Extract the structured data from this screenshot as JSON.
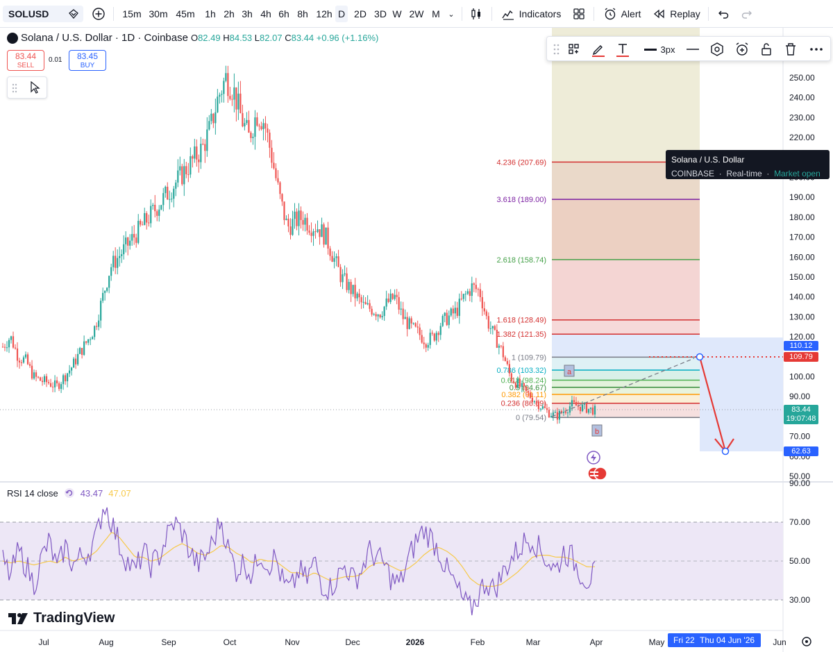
{
  "toolbar": {
    "symbol": "SOLUSD",
    "intervals": [
      "15m",
      "30m",
      "45m",
      "1h",
      "2h",
      "3h",
      "4h",
      "6h",
      "8h",
      "12h",
      "D",
      "2D",
      "3D",
      "W",
      "2W",
      "M"
    ],
    "active_interval": "D",
    "indicators_label": "Indicators",
    "alert_label": "Alert",
    "replay_label": "Replay"
  },
  "legend": {
    "title": "Solana / U.S. Dollar · 1D · Coinbase",
    "o_label": "O",
    "o": "82.49",
    "h_label": "H",
    "h": "84.53",
    "l_label": "L",
    "l": "82.07",
    "c_label": "C",
    "c": "83.44",
    "change": "+0.96 (+1.16%)"
  },
  "trade": {
    "sell_price": "83.44",
    "sell_label": "SELL",
    "spread": "0.01",
    "buy_price": "83.45",
    "buy_label": "BUY"
  },
  "drawing_toolbar": {
    "width_label": "3px"
  },
  "tooltip": {
    "title": "Solana / U.S. Dollar",
    "exchange": "COINBASE",
    "feed": "Real-time",
    "status": "Market open"
  },
  "rsi": {
    "label": "RSI 14 close",
    "value": "43.47",
    "ma_value": "47.07"
  },
  "brand": "TradingView",
  "colors": {
    "up": "#26a69a",
    "down": "#ef5350",
    "rsi": "#7e57c2",
    "rsi_ma": "#f7c948",
    "accent": "#2962ff"
  },
  "price_tags": {
    "target_high": "110.12",
    "fib_one": "109.79",
    "last": "83.44",
    "countdown": "19:07:48",
    "target_low": "62.63"
  },
  "date_tag": {
    "left": "Fri 22",
    "main": "Thu 04 Jun '26"
  },
  "chart_data": {
    "type": "candlestick",
    "price_axis": [
      "250.00",
      "240.00",
      "230.00",
      "220.00",
      "210.00",
      "200.00",
      "190.00",
      "180.00",
      "170.00",
      "160.00",
      "150.00",
      "140.00",
      "130.00",
      "120.00",
      "110.00",
      "100.00",
      "90.00",
      "80.00",
      "70.00",
      "60.00",
      "50.00"
    ],
    "time_axis": [
      "Jul",
      "Aug",
      "Sep",
      "Oct",
      "Nov",
      "Dec",
      "2026",
      "Feb",
      "Mar",
      "Apr",
      "May",
      "Jun"
    ],
    "rsi_axis": [
      "90.00",
      "70.00",
      "50.00",
      "30.00"
    ],
    "fib_levels": [
      {
        "label": "4.236 (207.69)",
        "value": 207.69,
        "color": "#d32f2f"
      },
      {
        "label": "3.618 (189.00)",
        "value": 189.0,
        "color": "#7b1fa2"
      },
      {
        "label": "2.618 (158.74)",
        "value": 158.74,
        "color": "#43a047"
      },
      {
        "label": "1.618 (128.49)",
        "value": 128.49,
        "color": "#d32f2f"
      },
      {
        "label": "1.382 (121.35)",
        "value": 121.35,
        "color": "#d32f2f"
      },
      {
        "label": "1 (109.79)",
        "value": 109.79,
        "color": "#787b86"
      },
      {
        "label": "0.786 (103.32)",
        "value": 103.32,
        "color": "#00acc1"
      },
      {
        "label": "0.618 (98.24)",
        "value": 98.24,
        "color": "#4caf50"
      },
      {
        "label": "0.5 (94.67)",
        "value": 94.67,
        "color": "#388e3c"
      },
      {
        "label": "0.382 (91.11)",
        "value": 91.11,
        "color": "#ff9800"
      },
      {
        "label": "0.236 (86.69)",
        "value": 86.69,
        "color": "#d32f2f"
      },
      {
        "label": "0 (79.54)",
        "value": 79.54,
        "color": "#787b86"
      }
    ],
    "wave_labels": [
      "a",
      "b"
    ],
    "projection": {
      "from": 109.79,
      "to": 62.63
    },
    "series_close": [
      115,
      120,
      110,
      108,
      100,
      98,
      97,
      95,
      100,
      105,
      112,
      118,
      125,
      140,
      155,
      160,
      165,
      170,
      175,
      180,
      185,
      190,
      195,
      200,
      205,
      210,
      215,
      225,
      240,
      250,
      244,
      230,
      220,
      232,
      228,
      210,
      190,
      175,
      178,
      180,
      176,
      175,
      170,
      160,
      150,
      145,
      140,
      135,
      134,
      132,
      137,
      140,
      130,
      125,
      122,
      118,
      120,
      127,
      130,
      133,
      140,
      145,
      143,
      128,
      120,
      112,
      100,
      96,
      92,
      89,
      85,
      82,
      80,
      83,
      86,
      85,
      84,
      83
    ],
    "rsi_values": [
      50,
      42,
      55,
      48,
      38,
      52,
      60,
      45,
      58,
      48,
      52,
      55,
      62,
      80,
      70,
      58,
      50,
      44,
      55,
      48,
      52,
      62,
      70,
      65,
      55,
      48,
      52,
      60,
      72,
      55,
      45,
      50,
      42,
      55,
      48,
      52,
      38,
      35,
      45,
      40,
      50,
      38,
      36,
      42,
      48,
      40,
      45,
      55,
      52,
      48,
      40,
      38,
      50,
      60,
      66,
      62,
      55,
      45,
      38,
      30,
      25,
      32,
      40,
      35,
      42,
      50,
      55,
      60,
      62,
      55,
      50,
      45,
      55,
      52,
      45,
      40,
      43.47
    ],
    "rsi_ma_values": [
      50,
      49,
      50,
      49,
      48,
      49,
      50,
      49,
      52,
      50,
      51,
      52,
      55,
      60,
      65,
      62,
      57,
      52,
      52,
      50,
      51,
      54,
      57,
      59,
      57,
      54,
      53,
      55,
      58,
      57,
      54,
      52,
      49,
      51,
      50,
      50,
      47,
      44,
      44,
      42,
      44,
      42,
      40,
      41,
      42,
      42,
      43,
      47,
      49,
      49,
      47,
      45,
      46,
      49,
      53,
      56,
      57,
      55,
      52,
      47,
      41,
      38,
      37,
      37,
      38,
      41,
      44,
      48,
      52,
      53,
      53,
      52,
      52,
      51,
      49,
      47,
      47.07
    ]
  }
}
